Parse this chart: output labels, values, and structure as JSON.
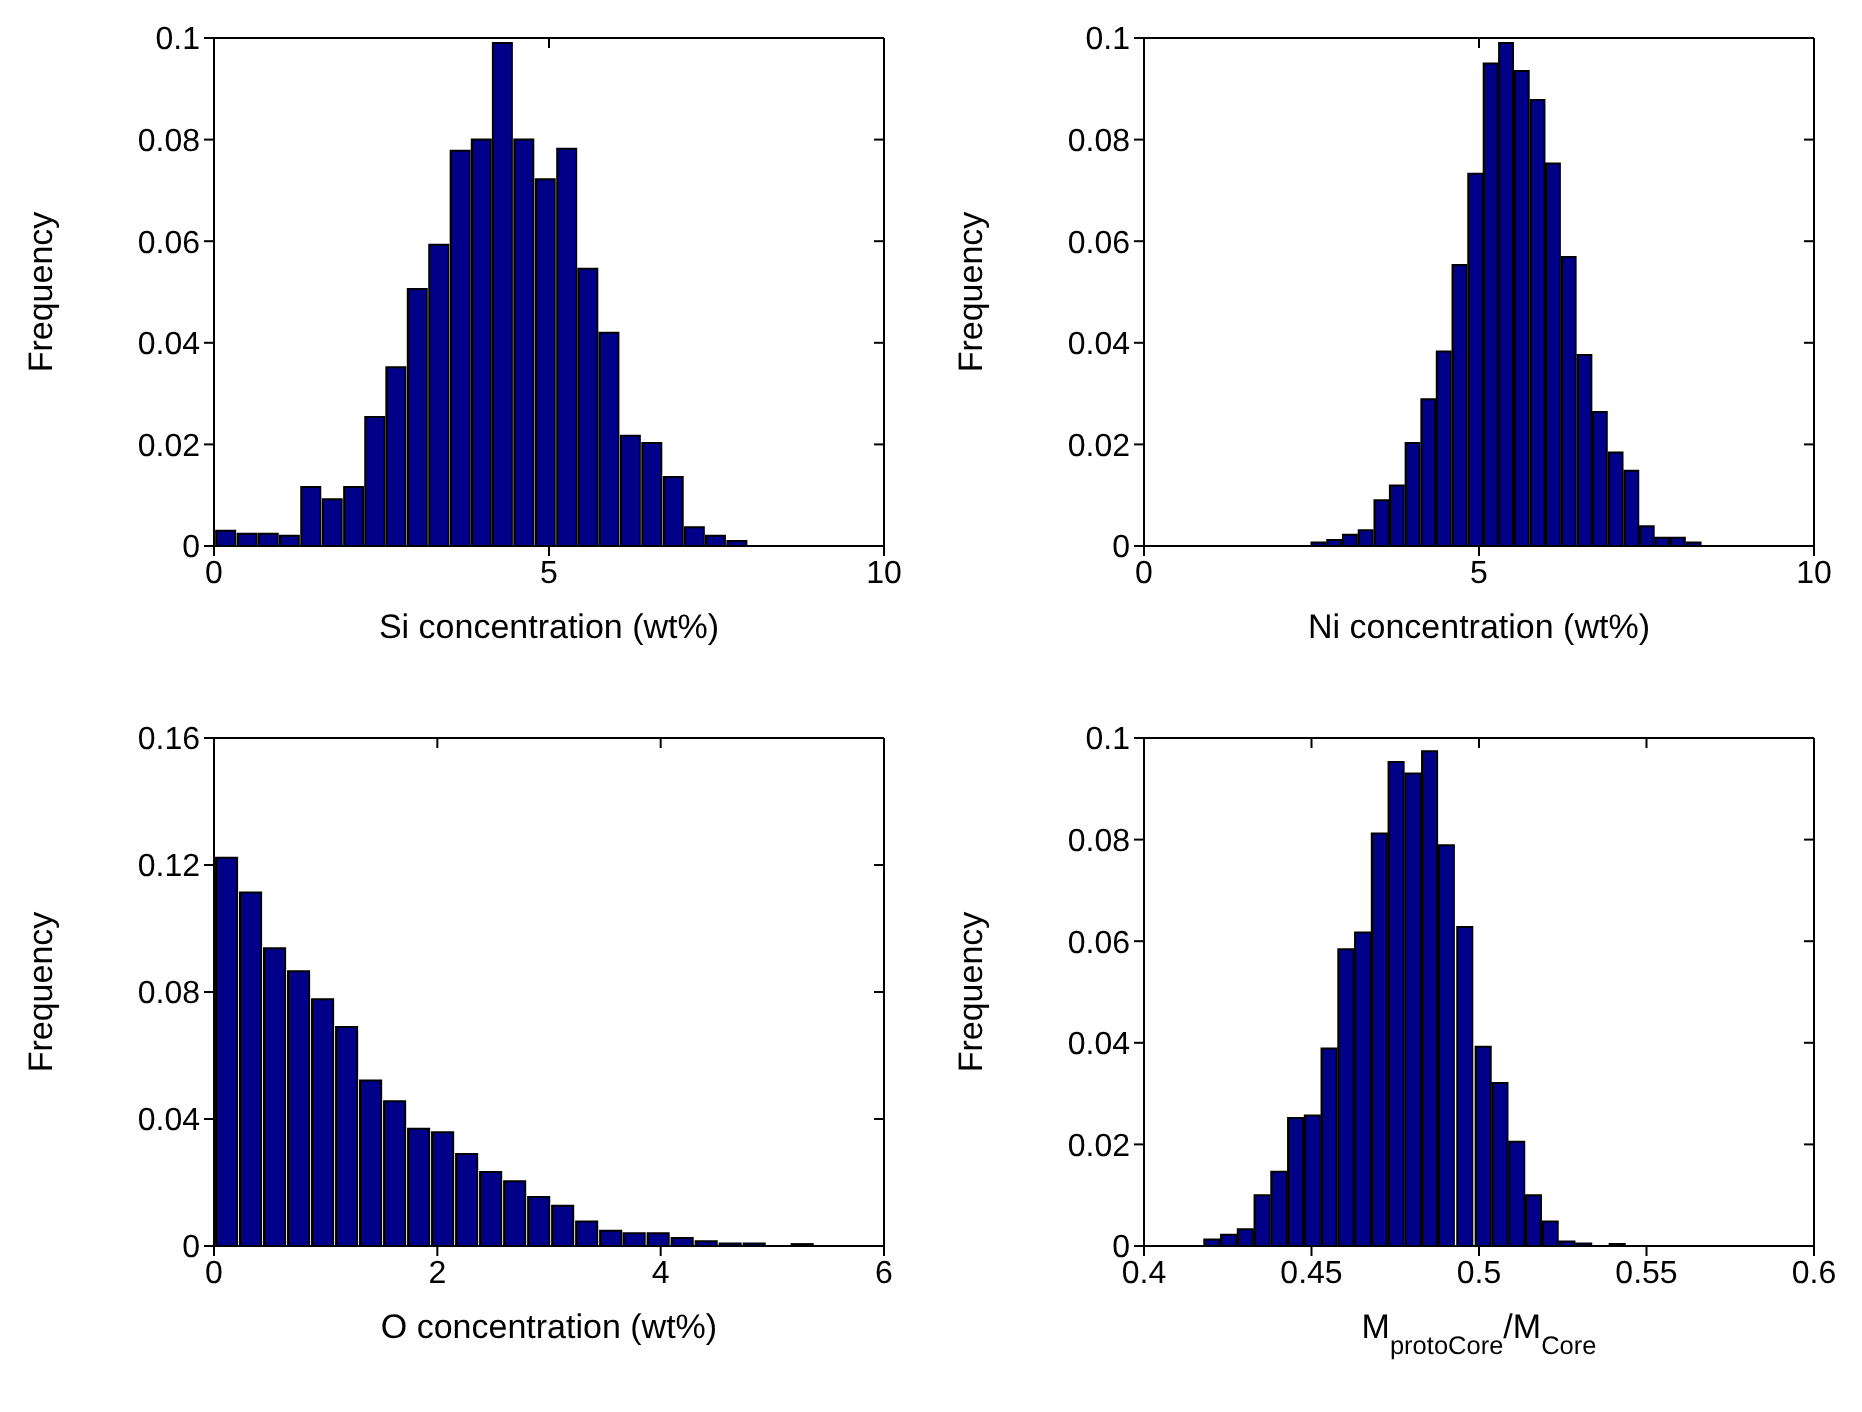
{
  "chart_data": [
    {
      "type": "histogram",
      "xlabel": "Si concentration (wt%)",
      "ylabel": "Frequency",
      "color": "#000088",
      "bins": [
        0,
        0.32,
        0.64,
        0.95,
        1.27,
        1.59,
        1.91,
        2.23,
        2.54,
        2.86,
        3.18,
        3.5,
        3.82,
        4.13,
        4.45,
        4.77,
        5.09,
        5.41,
        5.72,
        6.04,
        6.36,
        6.68,
        7,
        7.31,
        7.63,
        7.95
      ],
      "values": [
        0.003,
        0.0024,
        0.0024,
        0.002,
        0.0116,
        0.0092,
        0.0116,
        0.0254,
        0.0352,
        0.0506,
        0.0593,
        0.0778,
        0.08,
        0.099,
        0.08,
        0.0722,
        0.0782,
        0.0546,
        0.042,
        0.0217,
        0.0203,
        0.0136,
        0.0037,
        0.002,
        0.001
      ],
      "xlim": [
        0,
        10
      ],
      "xticks": [
        0,
        5,
        10
      ],
      "ylim": [
        0,
        0.1
      ],
      "yticks": [
        0,
        0.02,
        0.04,
        0.06,
        0.08,
        0.1
      ]
    },
    {
      "type": "histogram",
      "xlabel": "Ni concentration (wt%)",
      "ylabel": "Frequency",
      "color": "#000088",
      "bins": [
        2.5,
        2.73,
        2.97,
        3.2,
        3.44,
        3.67,
        3.9,
        4.14,
        4.37,
        4.6,
        4.84,
        5.07,
        5.3,
        5.53,
        5.77,
        6,
        6.23,
        6.47,
        6.7,
        6.93,
        7.17,
        7.4,
        7.63,
        7.86,
        8.1,
        8.33
      ],
      "values": [
        0.0007,
        0.0012,
        0.0022,
        0.0031,
        0.009,
        0.0119,
        0.0203,
        0.0289,
        0.0383,
        0.0553,
        0.0733,
        0.095,
        0.099,
        0.0935,
        0.0878,
        0.0753,
        0.0569,
        0.0376,
        0.0264,
        0.0184,
        0.0148,
        0.0039,
        0.0016,
        0.0016,
        0.0007
      ],
      "xlim": [
        0,
        10
      ],
      "xticks": [
        0,
        5,
        10
      ],
      "ylim": [
        0,
        0.1
      ],
      "yticks": [
        0,
        0.02,
        0.04,
        0.06,
        0.08,
        0.1
      ]
    },
    {
      "type": "histogram",
      "xlabel": "O concentration (wt%)",
      "ylabel": "Frequency",
      "color": "#000088",
      "bins": [
        0,
        0.21,
        0.43,
        0.64,
        0.86,
        1.07,
        1.29,
        1.5,
        1.72,
        1.93,
        2.15,
        2.36,
        2.58,
        2.79,
        3.01,
        3.22,
        3.44,
        3.65,
        3.86,
        4.08,
        4.29,
        4.51,
        4.72,
        4.94,
        5.15,
        5.37
      ],
      "values": [
        0.1223,
        0.1113,
        0.0938,
        0.0865,
        0.0777,
        0.069,
        0.0521,
        0.0456,
        0.0369,
        0.0358,
        0.029,
        0.0233,
        0.0204,
        0.0154,
        0.0127,
        0.0077,
        0.0048,
        0.004,
        0.004,
        0.0025,
        0.0015,
        0.0008,
        0.0008,
        0,
        0.0006
      ],
      "xlim": [
        0,
        6
      ],
      "xticks": [
        0,
        2,
        4,
        6
      ],
      "ylim": [
        0,
        0.16
      ],
      "yticks": [
        0,
        0.04,
        0.08,
        0.12,
        0.16
      ]
    },
    {
      "type": "histogram",
      "xlabel": "M$_{protoCore}$/M$_{Core}$",
      "ylabel": "Frequency",
      "color": "#000088",
      "bins": [
        0.418,
        0.423,
        0.428,
        0.433,
        0.438,
        0.443,
        0.448,
        0.453,
        0.458,
        0.463,
        0.468,
        0.473,
        0.478,
        0.483,
        0.488,
        0.493,
        0.499,
        0.504,
        0.509,
        0.514,
        0.519,
        0.524,
        0.529,
        0.534,
        0.539,
        0.544
      ],
      "values": [
        0.0013,
        0.0022,
        0.0033,
        0.01,
        0.0146,
        0.0252,
        0.0257,
        0.0389,
        0.0584,
        0.0617,
        0.0812,
        0.0953,
        0.093,
        0.0974,
        0.0789,
        0.0628,
        0.0392,
        0.0321,
        0.0205,
        0.01,
        0.0048,
        0.0009,
        0.0005,
        0,
        0.0004
      ],
      "xlim": [
        0.4,
        0.6
      ],
      "xticks": [
        0.4,
        0.45,
        0.5,
        0.55,
        0.6
      ],
      "ylim": [
        0,
        0.1
      ],
      "yticks": [
        0,
        0.02,
        0.04,
        0.06,
        0.08,
        0.1
      ]
    }
  ]
}
